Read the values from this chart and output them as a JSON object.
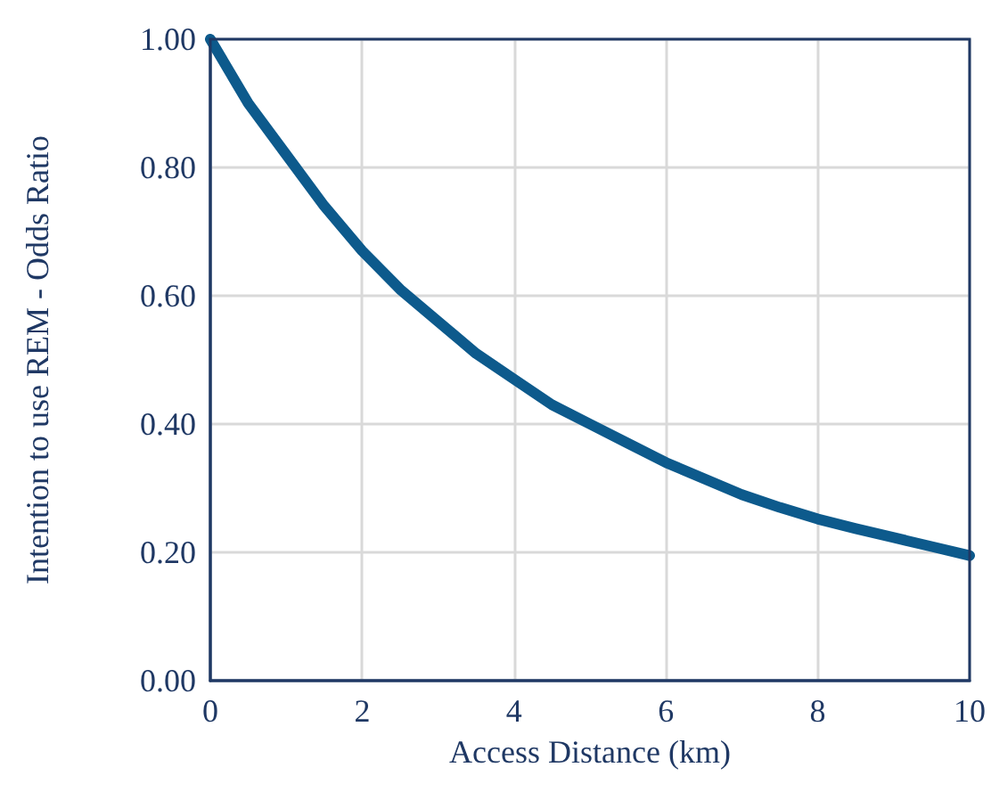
{
  "chart_data": {
    "type": "line",
    "xlabel": "Access Distance (km)",
    "ylabel": "Intention to use REM - Odds Ratio",
    "x": [
      0,
      0.5,
      1,
      1.5,
      2,
      2.5,
      3,
      3.5,
      4,
      4.5,
      5,
      5.5,
      6,
      6.5,
      7,
      7.5,
      8,
      8.5,
      9,
      9.5,
      10
    ],
    "series": [
      {
        "color": "#0d5a8c",
        "values": [
          1.0,
          0.9,
          0.82,
          0.74,
          0.67,
          0.61,
          0.56,
          0.51,
          0.47,
          0.43,
          0.4,
          0.37,
          0.34,
          0.315,
          0.29,
          0.27,
          0.252,
          0.237,
          0.223,
          0.209,
          0.195
        ]
      }
    ],
    "xlim": [
      0,
      10
    ],
    "xticks": [
      0,
      2,
      4,
      6,
      8,
      10
    ],
    "ylim": [
      0,
      1
    ],
    "yticks": [
      {
        "value": 0,
        "label": "0.00"
      },
      {
        "value": 0.2,
        "label": "0.20"
      },
      {
        "value": 0.4,
        "label": "0.40"
      },
      {
        "value": 0.6,
        "label": "0.60"
      },
      {
        "value": 0.8,
        "label": "0.80"
      },
      {
        "value": 1,
        "label": "1.00"
      }
    ],
    "grid": true,
    "marker": "none",
    "line_style": "solid"
  }
}
